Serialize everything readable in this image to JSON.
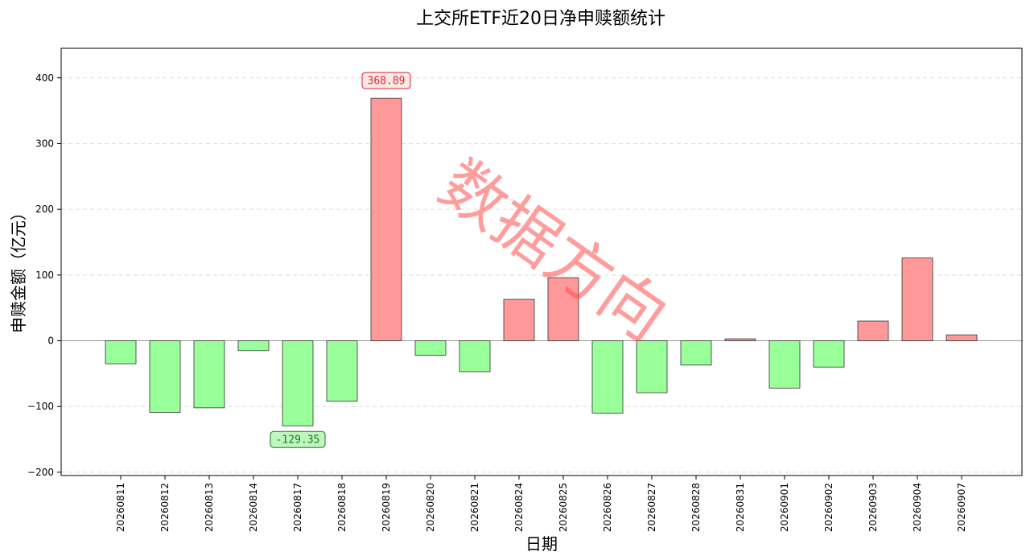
{
  "chart_data": {
    "type": "bar",
    "title": "上交所ETF近20日净申赎额统计",
    "xlabel": "日期",
    "ylabel": "申赎金额（亿元）",
    "categories": [
      "20260811",
      "20260812",
      "20260813",
      "20260814",
      "20260817",
      "20260818",
      "20260819",
      "20260820",
      "20260821",
      "20260824",
      "20260825",
      "20260826",
      "20260827",
      "20260828",
      "20260831",
      "20260901",
      "20260902",
      "20260903",
      "20260904",
      "20260907"
    ],
    "values": [
      -35,
      -109,
      -102,
      -15,
      -129.35,
      -92,
      368.89,
      -22,
      -47,
      63,
      96,
      -110,
      -79,
      -37,
      3,
      -72,
      -40,
      30,
      126,
      9
    ],
    "ylim": [
      -205,
      445
    ],
    "yticks": [
      -200,
      -100,
      0,
      100,
      200,
      300,
      400
    ],
    "grid": "horizontal-dashed",
    "colors": {
      "positive": "#ff9999",
      "negative": "#99ff99",
      "edge": "#333333"
    },
    "annotations": [
      {
        "category": "20260819",
        "text": "368.89",
        "color": "#d62728",
        "background": "#fde8e8"
      },
      {
        "category": "20260817",
        "text": "-129.35",
        "color": "#1a7a1a",
        "background": "#bff5bf"
      }
    ],
    "watermark": "数据方向"
  }
}
